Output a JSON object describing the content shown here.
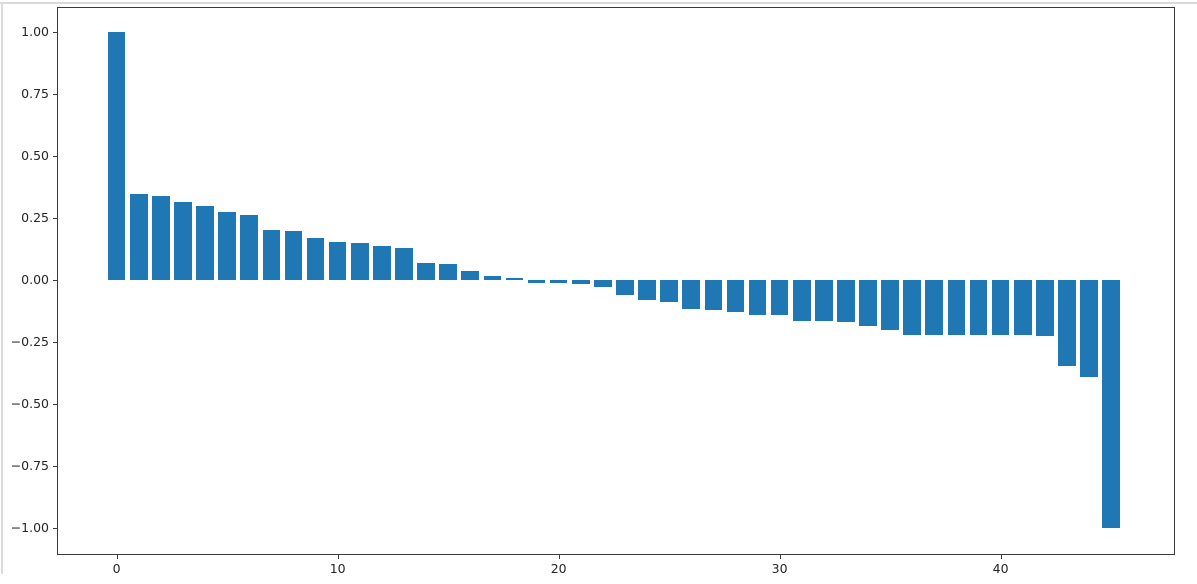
{
  "window": {
    "background_color": "#ffffff",
    "frame_edge_color": "#d9d9d9"
  },
  "chart_data": {
    "type": "bar",
    "title": "",
    "xlabel": "",
    "ylabel": "",
    "bar_color": "#1f77b4",
    "bar_width_units": 0.8,
    "grid": false,
    "legend_position": "none",
    "xlim": [
      -2.7,
      47.8
    ],
    "ylim": [
      -1.1,
      1.1
    ],
    "x_ticks": [
      0,
      10,
      20,
      30,
      40
    ],
    "x_tick_labels": [
      "0",
      "10",
      "20",
      "30",
      "40"
    ],
    "y_ticks": [
      1.0,
      0.75,
      0.5,
      0.25,
      0.0,
      -0.25,
      -0.5,
      -0.75,
      -1.0
    ],
    "y_tick_labels": [
      "1.00",
      "0.75",
      "0.50",
      "0.25",
      "0.00",
      "−0.25",
      "−0.50",
      "−0.75",
      "−1.00"
    ],
    "x": [
      0,
      1,
      2,
      3,
      4,
      5,
      6,
      7,
      8,
      9,
      10,
      11,
      12,
      13,
      14,
      15,
      16,
      17,
      18,
      19,
      20,
      21,
      22,
      23,
      24,
      25,
      26,
      27,
      28,
      29,
      30,
      31,
      32,
      33,
      34,
      35,
      36,
      37,
      38,
      39,
      40,
      41,
      42,
      43,
      44,
      45
    ],
    "values": [
      1.0,
      0.345,
      0.34,
      0.315,
      0.3,
      0.275,
      0.26,
      0.2,
      0.198,
      0.17,
      0.152,
      0.15,
      0.138,
      0.13,
      0.068,
      0.065,
      0.035,
      0.018,
      0.008,
      -0.012,
      -0.014,
      -0.016,
      -0.027,
      -0.062,
      -0.08,
      -0.088,
      -0.118,
      -0.122,
      -0.13,
      -0.142,
      -0.143,
      -0.164,
      -0.166,
      -0.168,
      -0.185,
      -0.2,
      -0.222,
      -0.222,
      -0.222,
      -0.223,
      -0.223,
      -0.223,
      -0.224,
      -0.347,
      -0.39,
      -1.0
    ]
  }
}
